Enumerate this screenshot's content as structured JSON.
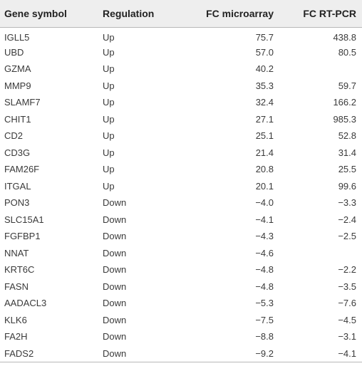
{
  "table": {
    "headers": {
      "gene": "Gene symbol",
      "regulation": "Regulation",
      "fc_microarray": "FC microarray",
      "fc_rtpcr": "FC RT-PCR"
    },
    "rows": [
      {
        "gene": "IGLL5",
        "regulation": "Up",
        "fc_microarray": "75.7",
        "fc_rtpcr": "438.8"
      },
      {
        "gene": "UBD",
        "regulation": "Up",
        "fc_microarray": "57.0",
        "fc_rtpcr": "80.5"
      },
      {
        "gene": "GZMA",
        "regulation": "Up",
        "fc_microarray": "40.2",
        "fc_rtpcr": ""
      },
      {
        "gene": "MMP9",
        "regulation": "Up",
        "fc_microarray": "35.3",
        "fc_rtpcr": "59.7"
      },
      {
        "gene": "SLAMF7",
        "regulation": "Up",
        "fc_microarray": "32.4",
        "fc_rtpcr": "166.2"
      },
      {
        "gene": "CHIT1",
        "regulation": "Up",
        "fc_microarray": "27.1",
        "fc_rtpcr": "985.3"
      },
      {
        "gene": "CD2",
        "regulation": "Up",
        "fc_microarray": "25.1",
        "fc_rtpcr": "52.8"
      },
      {
        "gene": "CD3G",
        "regulation": "Up",
        "fc_microarray": "21.4",
        "fc_rtpcr": "31.4"
      },
      {
        "gene": "FAM26F",
        "regulation": "Up",
        "fc_microarray": "20.8",
        "fc_rtpcr": "25.5"
      },
      {
        "gene": "ITGAL",
        "regulation": "Up",
        "fc_microarray": "20.1",
        "fc_rtpcr": "99.6"
      },
      {
        "gene": "PON3",
        "regulation": "Down",
        "fc_microarray": "−4.0",
        "fc_rtpcr": "−3.3"
      },
      {
        "gene": "SLC15A1",
        "regulation": "Down",
        "fc_microarray": "−4.1",
        "fc_rtpcr": "−2.4"
      },
      {
        "gene": "FGFBP1",
        "regulation": "Down",
        "fc_microarray": "−4.3",
        "fc_rtpcr": "−2.5"
      },
      {
        "gene": "NNAT",
        "regulation": "Down",
        "fc_microarray": "−4.6",
        "fc_rtpcr": ""
      },
      {
        "gene": "KRT6C",
        "regulation": "Down",
        "fc_microarray": "−4.8",
        "fc_rtpcr": "−2.2"
      },
      {
        "gene": "FASN",
        "regulation": "Down",
        "fc_microarray": "−4.8",
        "fc_rtpcr": "−3.5"
      },
      {
        "gene": "AADACL3",
        "regulation": "Down",
        "fc_microarray": "−5.3",
        "fc_rtpcr": "−7.6"
      },
      {
        "gene": "KLK6",
        "regulation": "Down",
        "fc_microarray": "−7.5",
        "fc_rtpcr": "−4.5"
      },
      {
        "gene": "FA2H",
        "regulation": "Down",
        "fc_microarray": "−8.8",
        "fc_rtpcr": "−3.1"
      },
      {
        "gene": "FADS2",
        "regulation": "Down",
        "fc_microarray": "−9.2",
        "fc_rtpcr": "−4.1"
      }
    ]
  },
  "colors": {
    "header_bg": "#eeeeee",
    "rule": "#b8b8b8",
    "text": "#333333"
  }
}
